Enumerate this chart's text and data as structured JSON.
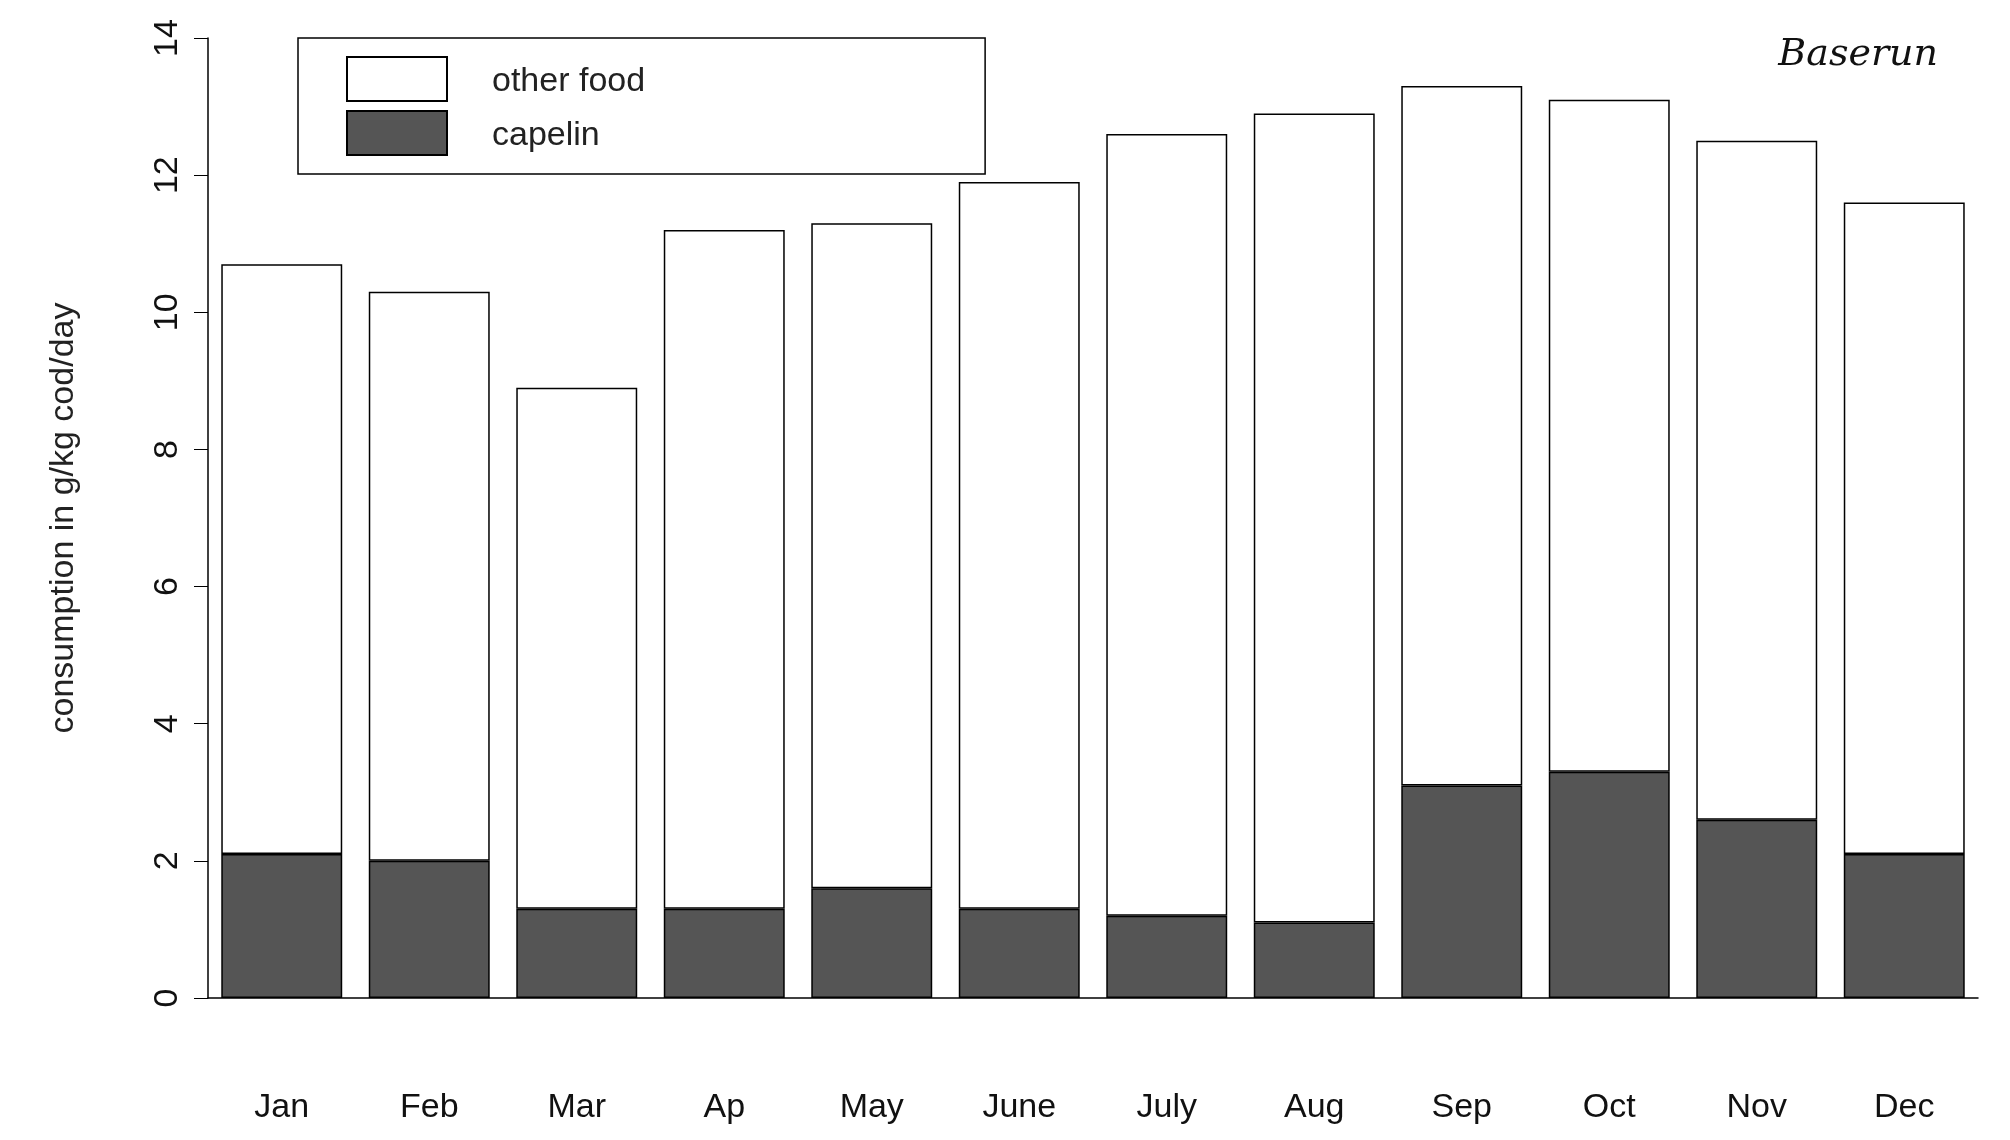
{
  "chart_data": {
    "type": "bar",
    "stacked": true,
    "ylabel": "consumption in g/kg cod/day",
    "categories": [
      "Jan",
      "Feb",
      "Mar",
      "Ap",
      "May",
      "June",
      "July",
      "Aug",
      "Sep",
      "Oct",
      "Nov",
      "Dec"
    ],
    "series": [
      {
        "name": "capelin",
        "color": "#555555",
        "values": [
          2.1,
          2.0,
          1.3,
          1.3,
          1.6,
          1.3,
          1.2,
          1.1,
          3.1,
          3.3,
          2.6,
          2.1
        ]
      },
      {
        "name": "other food",
        "color": "#ffffff",
        "values": [
          8.6,
          8.3,
          7.6,
          9.9,
          9.7,
          10.6,
          11.4,
          11.8,
          10.2,
          9.8,
          9.9,
          9.5
        ]
      }
    ],
    "ylim": [
      0,
      14
    ],
    "yticks": [
      0,
      2,
      4,
      6,
      8,
      10,
      12,
      14
    ],
    "grid": false,
    "legend": "top left",
    "annotations": [
      "Baserun"
    ]
  }
}
